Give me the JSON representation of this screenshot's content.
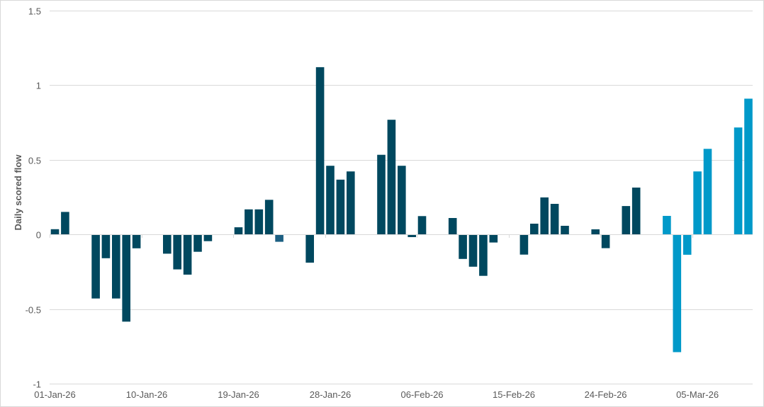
{
  "chart_data": {
    "type": "bar",
    "title": "",
    "xlabel": "",
    "ylabel": "Daily scored flow",
    "ylim": [
      -1,
      1.5
    ],
    "yticks": [
      -1,
      -0.5,
      0,
      0.5,
      1,
      1.5
    ],
    "ytick_labels": [
      "-1",
      "-0.5",
      "0",
      "0.5",
      "1",
      "1.5"
    ],
    "xtick_labels": [
      "01-Jan-26",
      "10-Jan-26",
      "19-Jan-26",
      "28-Jan-26",
      "06-Feb-26",
      "15-Feb-26",
      "24-Feb-26",
      "05-Mar-26"
    ],
    "x_axis_type": "date",
    "x_start": "01-Jan-26",
    "label_interval_days": 9,
    "grid": true,
    "legend": null,
    "colors": {
      "primary": "#00485f",
      "highlight": "#1c5f82",
      "recent": "#0099c9"
    },
    "points": [
      {
        "day": 0,
        "date": "01-Jan-26",
        "value": 0.034,
        "color": "primary"
      },
      {
        "day": 1,
        "date": "02-Jan-26",
        "value": 0.15,
        "color": "primary"
      },
      {
        "day": 4,
        "date": "05-Jan-26",
        "value": -0.43,
        "color": "primary"
      },
      {
        "day": 5,
        "date": "06-Jan-26",
        "value": -0.16,
        "color": "primary"
      },
      {
        "day": 6,
        "date": "07-Jan-26",
        "value": -0.43,
        "color": "primary"
      },
      {
        "day": 7,
        "date": "08-Jan-26",
        "value": -0.585,
        "color": "primary"
      },
      {
        "day": 8,
        "date": "09-Jan-26",
        "value": -0.094,
        "color": "primary"
      },
      {
        "day": 11,
        "date": "12-Jan-26",
        "value": -0.13,
        "color": "primary"
      },
      {
        "day": 12,
        "date": "13-Jan-26",
        "value": -0.235,
        "color": "primary"
      },
      {
        "day": 13,
        "date": "14-Jan-26",
        "value": -0.27,
        "color": "primary"
      },
      {
        "day": 14,
        "date": "15-Jan-26",
        "value": -0.117,
        "color": "primary"
      },
      {
        "day": 15,
        "date": "16-Jan-26",
        "value": -0.046,
        "color": "primary"
      },
      {
        "day": 18,
        "date": "19-Jan-26",
        "value": 0.047,
        "color": "primary"
      },
      {
        "day": 19,
        "date": "20-Jan-26",
        "value": 0.167,
        "color": "primary"
      },
      {
        "day": 20,
        "date": "21-Jan-26",
        "value": 0.167,
        "color": "primary"
      },
      {
        "day": 21,
        "date": "22-Jan-26",
        "value": 0.231,
        "color": "primary"
      },
      {
        "day": 22,
        "date": "23-Jan-26",
        "value": -0.05,
        "color": "highlight"
      },
      {
        "day": 25,
        "date": "26-Jan-26",
        "value": -0.19,
        "color": "primary"
      },
      {
        "day": 26,
        "date": "27-Jan-26",
        "value": 1.119,
        "color": "primary"
      },
      {
        "day": 27,
        "date": "28-Jan-26",
        "value": 0.459,
        "color": "primary"
      },
      {
        "day": 28,
        "date": "29-Jan-26",
        "value": 0.366,
        "color": "primary"
      },
      {
        "day": 29,
        "date": "30-Jan-26",
        "value": 0.421,
        "color": "primary"
      },
      {
        "day": 32,
        "date": "02-Feb-26",
        "value": 0.532,
        "color": "primary"
      },
      {
        "day": 33,
        "date": "03-Feb-26",
        "value": 0.767,
        "color": "primary"
      },
      {
        "day": 34,
        "date": "04-Feb-26",
        "value": 0.459,
        "color": "primary"
      },
      {
        "day": 35,
        "date": "05-Feb-26",
        "value": -0.019,
        "color": "primary"
      },
      {
        "day": 36,
        "date": "06-Feb-26",
        "value": 0.122,
        "color": "primary"
      },
      {
        "day": 39,
        "date": "09-Feb-26",
        "value": 0.109,
        "color": "primary"
      },
      {
        "day": 40,
        "date": "10-Feb-26",
        "value": -0.165,
        "color": "primary"
      },
      {
        "day": 41,
        "date": "11-Feb-26",
        "value": -0.217,
        "color": "primary"
      },
      {
        "day": 42,
        "date": "12-Feb-26",
        "value": -0.278,
        "color": "primary"
      },
      {
        "day": 43,
        "date": "13-Feb-26",
        "value": -0.055,
        "color": "primary"
      },
      {
        "day": 46,
        "date": "16-Feb-26",
        "value": -0.136,
        "color": "primary"
      },
      {
        "day": 47,
        "date": "17-Feb-26",
        "value": 0.071,
        "color": "primary"
      },
      {
        "day": 48,
        "date": "18-Feb-26",
        "value": 0.247,
        "color": "primary"
      },
      {
        "day": 49,
        "date": "19-Feb-26",
        "value": 0.204,
        "color": "primary"
      },
      {
        "day": 50,
        "date": "20-Feb-26",
        "value": 0.057,
        "color": "primary"
      },
      {
        "day": 53,
        "date": "23-Feb-26",
        "value": 0.033,
        "color": "primary"
      },
      {
        "day": 54,
        "date": "24-Feb-26",
        "value": -0.093,
        "color": "primary"
      },
      {
        "day": 56,
        "date": "26-Feb-26",
        "value": 0.189,
        "color": "primary"
      },
      {
        "day": 57,
        "date": "27-Feb-26",
        "value": 0.313,
        "color": "primary"
      },
      {
        "day": 60,
        "date": "02-Mar-26",
        "value": 0.123,
        "color": "recent"
      },
      {
        "day": 61,
        "date": "03-Mar-26",
        "value": -0.789,
        "color": "recent"
      },
      {
        "day": 62,
        "date": "04-Mar-26",
        "value": -0.137,
        "color": "recent"
      },
      {
        "day": 63,
        "date": "05-Mar-26",
        "value": 0.421,
        "color": "recent"
      },
      {
        "day": 64,
        "date": "06-Mar-26",
        "value": 0.572,
        "color": "recent"
      },
      {
        "day": 67,
        "date": "09-Mar-26",
        "value": 0.715,
        "color": "recent"
      },
      {
        "day": 68,
        "date": "10-Mar-26",
        "value": 0.908,
        "color": "recent"
      }
    ]
  }
}
